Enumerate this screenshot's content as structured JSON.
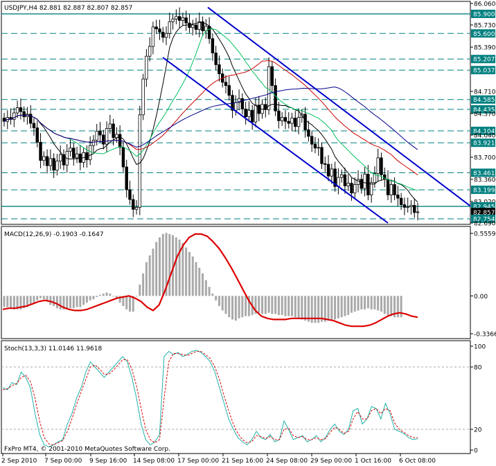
{
  "chart_data": [
    {
      "type": "line",
      "panel": "price",
      "title": "USDJPY,H4  82.881 82.887 82.807 82.857",
      "price_levels": [
        "86.060",
        "85.900",
        "85.730",
        "85.600",
        "85.390",
        "85.207",
        "85.037",
        "84.710",
        "84.585",
        "84.435",
        "84.370",
        "84.104",
        "84.040",
        "83.921",
        "83.700",
        "83.461",
        "83.360",
        "83.199",
        "83.020",
        "82.945",
        "82.857",
        "82.754",
        "82.690"
      ],
      "level_colors": {
        "resistance": "#008080",
        "current": "#000000"
      },
      "grid": true,
      "close_series": [
        84.25,
        84.31,
        84.28,
        84.38,
        84.46,
        84.4,
        84.32,
        84.36,
        84.22,
        84.15,
        83.93,
        83.65,
        83.71,
        83.57,
        83.68,
        83.5,
        83.64,
        83.74,
        83.58,
        83.79,
        83.84,
        83.69,
        83.75,
        83.62,
        83.77,
        83.66,
        83.88,
        83.96,
        84.1,
        84.04,
        83.9,
        84.14,
        84.21,
        84.0,
        84.05,
        83.85,
        83.55,
        83.2,
        83.05,
        82.9,
        82.93,
        84.35,
        84.9,
        85.25,
        85.4,
        85.7,
        85.67,
        85.62,
        85.54,
        85.6,
        85.78,
        85.82,
        85.86,
        85.8,
        85.84,
        85.76,
        85.69,
        85.73,
        85.66,
        85.78,
        85.64,
        85.71,
        85.52,
        85.3,
        85.12,
        84.98,
        84.85,
        84.8,
        84.65,
        84.42,
        84.54,
        84.6,
        84.44,
        84.32,
        84.42,
        84.24,
        84.5,
        84.37,
        84.51,
        84.43,
        85.09,
        84.8,
        84.41,
        84.26,
        84.31,
        84.25,
        84.22,
        84.3,
        84.17,
        84.31,
        84.36,
        84.12,
        84.02,
        83.9,
        83.84,
        83.85,
        83.6,
        83.59,
        83.41,
        83.52,
        83.25,
        83.39,
        83.43,
        83.26,
        83.3,
        83.15,
        83.28,
        83.36,
        83.22,
        83.44,
        83.12,
        83.31,
        83.45,
        83.69,
        83.43,
        83.36,
        83.12,
        83.28,
        83.12,
        83.07,
        82.97,
        82.93,
        82.94,
        82.96,
        82.85,
        82.86
      ],
      "moving_averages": [
        {
          "name": "MA fast",
          "color": "#000000"
        },
        {
          "name": "MA mid",
          "color": "#00c060"
        },
        {
          "name": "MA slow",
          "color": "#cc0000"
        },
        {
          "name": "MA long",
          "color": "#00008b"
        }
      ],
      "channel_color": "#0000cc"
    },
    {
      "type": "bar",
      "panel": "macd",
      "title": "MACD(12,26,9) -0.1903 -0.1647",
      "levels": [
        "0.5559",
        "0.00",
        "-0.3366"
      ],
      "ylim": [
        -0.3366,
        0.5559
      ],
      "histogram_color": "#a9a9a9",
      "signal_color": "#dd0000",
      "histogram": [
        -0.1,
        -0.1,
        -0.11,
        -0.12,
        -0.12,
        -0.12,
        -0.11,
        -0.1,
        -0.08,
        -0.06,
        -0.04,
        -0.02,
        -0.03,
        -0.05,
        -0.08,
        -0.09,
        -0.11,
        -0.12,
        -0.12,
        -0.12,
        -0.11,
        -0.11,
        -0.1,
        -0.1,
        -0.08,
        -0.06,
        -0.04,
        -0.03,
        -0.01,
        0.01,
        0.02,
        0.03,
        0.02,
        0.0,
        -0.03,
        -0.06,
        -0.09,
        -0.12,
        -0.14,
        -0.14,
        0.0,
        0.1,
        0.2,
        0.3,
        0.36,
        0.42,
        0.48,
        0.52,
        0.55,
        0.56,
        0.55,
        0.54,
        0.52,
        0.5,
        0.47,
        0.43,
        0.39,
        0.35,
        0.3,
        0.25,
        0.2,
        0.14,
        0.08,
        0.02,
        -0.04,
        -0.09,
        -0.13,
        -0.16,
        -0.19,
        -0.21,
        -0.22,
        -0.2,
        -0.19,
        -0.18,
        -0.18,
        -0.17,
        -0.16,
        -0.15,
        -0.16,
        -0.16,
        -0.15,
        -0.16,
        -0.16,
        -0.17,
        -0.17,
        -0.18,
        -0.18,
        -0.18,
        -0.19,
        -0.2,
        -0.21,
        -0.22,
        -0.23,
        -0.24,
        -0.24,
        -0.24,
        -0.23,
        -0.23,
        -0.22,
        -0.22,
        -0.21,
        -0.2,
        -0.19,
        -0.18,
        -0.17,
        -0.15,
        -0.14,
        -0.13,
        -0.12,
        -0.12,
        -0.11,
        -0.12,
        -0.12,
        -0.13,
        -0.14,
        -0.16,
        -0.17,
        -0.18,
        -0.19,
        -0.19,
        -0.19
      ],
      "signal": [
        -0.12,
        -0.11,
        -0.11,
        -0.1,
        -0.09,
        -0.07,
        -0.05,
        -0.04,
        -0.05,
        -0.07,
        -0.1,
        -0.12,
        -0.13,
        -0.13,
        -0.12,
        -0.1,
        -0.08,
        -0.06,
        -0.04,
        -0.02,
        -0.01,
        0.0,
        -0.02,
        -0.05,
        -0.1,
        -0.13,
        -0.08,
        0.05,
        0.2,
        0.35,
        0.45,
        0.52,
        0.55,
        0.55,
        0.53,
        0.48,
        0.42,
        0.34,
        0.25,
        0.15,
        0.05,
        -0.05,
        -0.13,
        -0.18,
        -0.2,
        -0.21,
        -0.21,
        -0.21,
        -0.2,
        -0.2,
        -0.2,
        -0.2,
        -0.2,
        -0.2,
        -0.21,
        -0.22,
        -0.24,
        -0.26,
        -0.27,
        -0.27,
        -0.27,
        -0.26,
        -0.24,
        -0.21,
        -0.18,
        -0.16,
        -0.15,
        -0.16,
        -0.18,
        -0.19
      ]
    },
    {
      "type": "line",
      "panel": "stochastic",
      "title": "Stoch(13,3,3) 11.0146 11.9618",
      "levels": [
        "100",
        "80",
        "20",
        "0"
      ],
      "ylim": [
        0,
        100
      ],
      "main_color": "#20b2aa",
      "signal_color": "#dd0000",
      "main": [
        60,
        58,
        65,
        63,
        75,
        70,
        60,
        35,
        15,
        5,
        3,
        5,
        8,
        10,
        25,
        35,
        50,
        60,
        75,
        85,
        80,
        75,
        70,
        75,
        80,
        85,
        90,
        85,
        70,
        50,
        25,
        10,
        5,
        8,
        15,
        90,
        95,
        92,
        94,
        90,
        92,
        95,
        96,
        94,
        90,
        85,
        75,
        60,
        45,
        30,
        20,
        12,
        8,
        5,
        10,
        18,
        12,
        10,
        15,
        8,
        10,
        28,
        20,
        10,
        12,
        14,
        8,
        10,
        14,
        8,
        12,
        20,
        25,
        18,
        15,
        20,
        38,
        40,
        25,
        30,
        42,
        40,
        30,
        45,
        35,
        20,
        18,
        16,
        12,
        10,
        11
      ],
      "signal": [
        58,
        59,
        62,
        64,
        70,
        72,
        66,
        50,
        28,
        12,
        6,
        5,
        7,
        9,
        18,
        30,
        44,
        56,
        68,
        80,
        82,
        78,
        73,
        73,
        77,
        82,
        87,
        87,
        78,
        62,
        40,
        20,
        10,
        7,
        10,
        50,
        85,
        93,
        93,
        92,
        91,
        93,
        95,
        95,
        92,
        88,
        80,
        68,
        52,
        38,
        25,
        16,
        10,
        7,
        8,
        14,
        13,
        11,
        13,
        10,
        10,
        20,
        21,
        14,
        12,
        13,
        10,
        10,
        12,
        10,
        11,
        17,
        22,
        20,
        16,
        18,
        30,
        37,
        30,
        30,
        38,
        40,
        35,
        40,
        38,
        26,
        20,
        17,
        14,
        12,
        12
      ]
    }
  ],
  "watermark": "FxPro MT4, © 2001-2010 MetaQuotes Software Corp.",
  "time_axis_labels": [
    "2 Sep 2010",
    "7 Sep 00:00",
    "9 Sep 16:00",
    "14 Sep 08:00",
    "17 Sep 00:00",
    "21 Sep 16:00",
    "24 Sep 08:00",
    "29 Sep 00:00",
    "1 Oct 16:00",
    "6 Oct 08:00"
  ]
}
